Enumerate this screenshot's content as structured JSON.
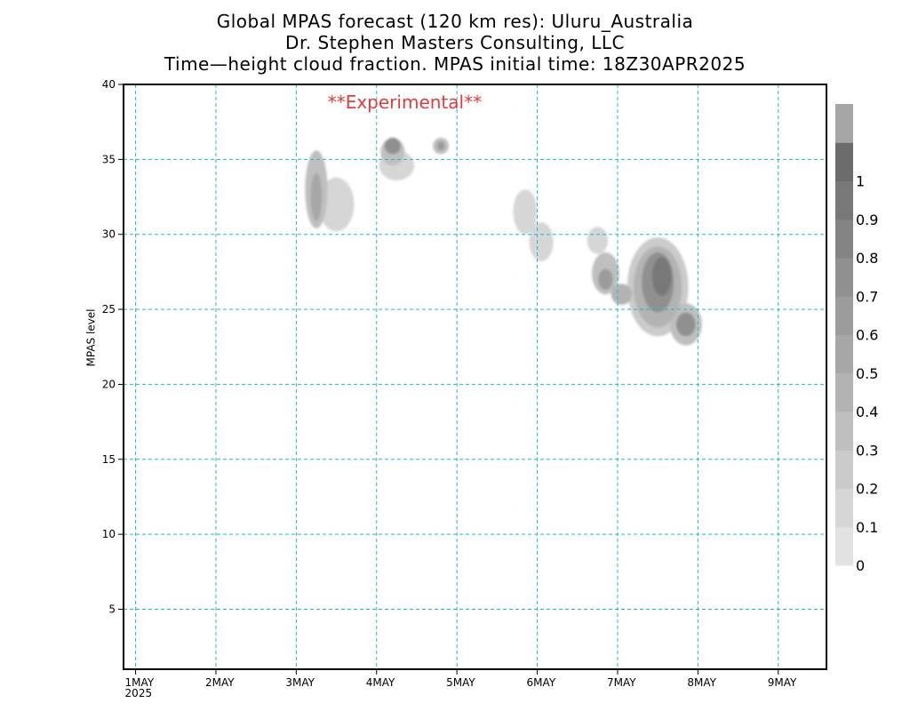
{
  "header": {
    "title_line1": "Global MPAS forecast (120 km res): Uluru_Australia",
    "title_line2": "Dr. Stephen Masters Consulting, LLC",
    "title_line3": "Time—height cloud fraction.   MPAS initial time: 18Z30APR2025"
  },
  "chart_data": {
    "type": "heatmap",
    "annotation": "**Experimental**",
    "annotation_color": "#e03c3c",
    "ylabel": "MPAS level",
    "xlabel": "",
    "ylim": [
      1,
      40
    ],
    "xlim": [
      -0.15,
      8.6
    ],
    "y_ticks": [
      5,
      10,
      15,
      20,
      25,
      30,
      35,
      40
    ],
    "x_ticks": [
      {
        "x": 0,
        "label": "1MAY",
        "sub": "2025"
      },
      {
        "x": 1,
        "label": "2MAY",
        "sub": ""
      },
      {
        "x": 2,
        "label": "3MAY",
        "sub": ""
      },
      {
        "x": 3,
        "label": "4MAY",
        "sub": ""
      },
      {
        "x": 4,
        "label": "5MAY",
        "sub": ""
      },
      {
        "x": 5,
        "label": "6MAY",
        "sub": ""
      },
      {
        "x": 6,
        "label": "7MAY",
        "sub": ""
      },
      {
        "x": 7,
        "label": "8MAY",
        "sub": ""
      },
      {
        "x": 8,
        "label": "9MAY",
        "sub": ""
      }
    ],
    "grid": true,
    "grid_color": "#20b8c8",
    "colorbar": {
      "placement": "right",
      "labels": [
        "0",
        "0.1",
        "0.2",
        "0.3",
        "0.4",
        "0.5",
        "0.6",
        "0.7",
        "0.8",
        "0.9",
        "1"
      ],
      "colors": [
        "#e2e2e2",
        "#d6d6d6",
        "#cbcbcb",
        "#bfbfbf",
        "#b3b3b3",
        "#a7a7a7",
        "#9c9c9c",
        "#909090",
        "#848484",
        "#787878",
        "#6c6c6c",
        "#a6a6a6"
      ]
    },
    "cloud_blobs": [
      {
        "x": 2.25,
        "y": 33.0,
        "rx": 0.14,
        "ry": 2.6,
        "value": 0.3
      },
      {
        "x": 2.25,
        "y": 32.5,
        "rx": 0.07,
        "ry": 1.6,
        "value": 0.55
      },
      {
        "x": 2.5,
        "y": 32.0,
        "rx": 0.22,
        "ry": 1.8,
        "value": 0.15
      },
      {
        "x": 3.2,
        "y": 35.5,
        "rx": 0.15,
        "ry": 0.9,
        "value": 0.35
      },
      {
        "x": 3.2,
        "y": 35.9,
        "rx": 0.1,
        "ry": 0.55,
        "value": 0.75
      },
      {
        "x": 3.25,
        "y": 34.6,
        "rx": 0.22,
        "ry": 1.0,
        "value": 0.15
      },
      {
        "x": 3.8,
        "y": 35.9,
        "rx": 0.1,
        "ry": 0.55,
        "value": 0.35
      },
      {
        "x": 3.8,
        "y": 35.9,
        "rx": 0.05,
        "ry": 0.3,
        "value": 0.65
      },
      {
        "x": 4.85,
        "y": 31.5,
        "rx": 0.15,
        "ry": 1.5,
        "value": 0.15
      },
      {
        "x": 5.05,
        "y": 29.5,
        "rx": 0.15,
        "ry": 1.3,
        "value": 0.15
      },
      {
        "x": 5.75,
        "y": 29.6,
        "rx": 0.13,
        "ry": 0.9,
        "value": 0.15
      },
      {
        "x": 5.85,
        "y": 27.4,
        "rx": 0.17,
        "ry": 1.4,
        "value": 0.3
      },
      {
        "x": 5.85,
        "y": 27.0,
        "rx": 0.09,
        "ry": 0.7,
        "value": 0.6
      },
      {
        "x": 6.05,
        "y": 26.0,
        "rx": 0.13,
        "ry": 0.7,
        "value": 0.45
      },
      {
        "x": 6.5,
        "y": 26.5,
        "rx": 0.38,
        "ry": 3.3,
        "value": 0.2
      },
      {
        "x": 6.5,
        "y": 26.5,
        "rx": 0.3,
        "ry": 2.7,
        "value": 0.45
      },
      {
        "x": 6.5,
        "y": 26.8,
        "rx": 0.2,
        "ry": 2.0,
        "value": 0.75
      },
      {
        "x": 6.55,
        "y": 27.2,
        "rx": 0.12,
        "ry": 1.3,
        "value": 0.9
      },
      {
        "x": 6.85,
        "y": 24.0,
        "rx": 0.2,
        "ry": 1.4,
        "value": 0.35
      },
      {
        "x": 6.85,
        "y": 24.0,
        "rx": 0.12,
        "ry": 0.8,
        "value": 0.75
      }
    ]
  }
}
